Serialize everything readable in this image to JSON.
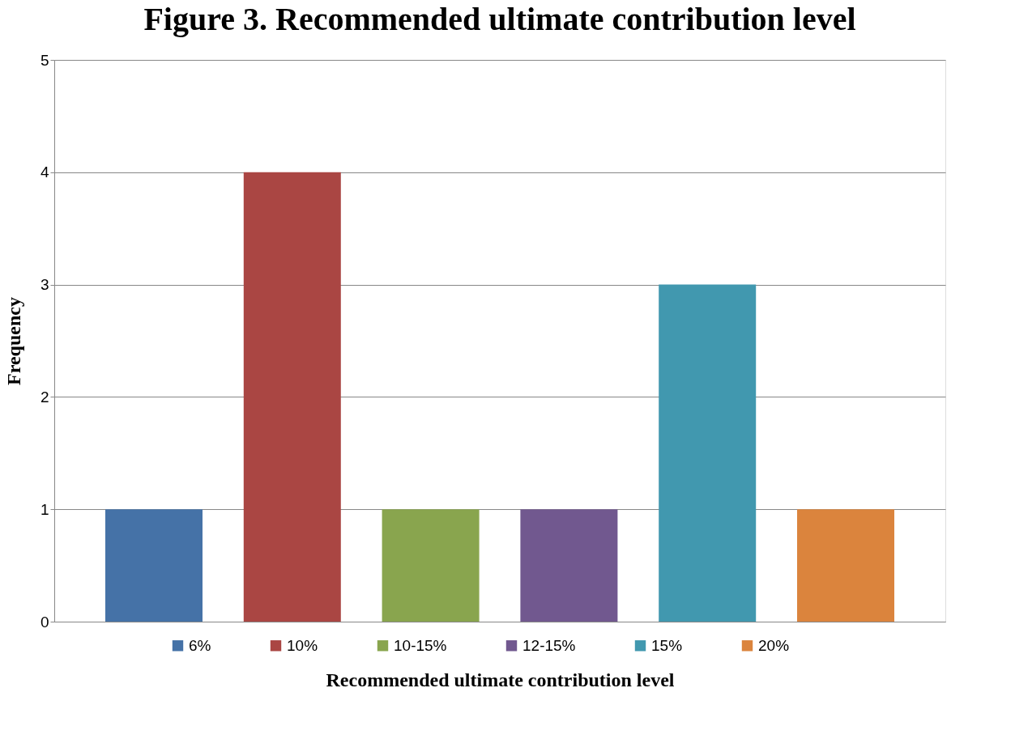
{
  "chart_data": {
    "type": "bar",
    "title": "Figure 3. Recommended ultimate contribution level",
    "xlabel": "Recommended ultimate contribution level",
    "ylabel": "Frequency",
    "categories": [
      null
    ],
    "series": [
      {
        "name": "6%",
        "color": "#4572a7",
        "values": [
          1
        ]
      },
      {
        "name": "10%",
        "color": "#aa4643",
        "values": [
          4
        ]
      },
      {
        "name": "10-15%",
        "color": "#89a54e",
        "values": [
          1
        ]
      },
      {
        "name": "12-15%",
        "color": "#71588f",
        "values": [
          1
        ]
      },
      {
        "name": "15%",
        "color": "#4198af",
        "values": [
          3
        ]
      },
      {
        "name": "20%",
        "color": "#db843d",
        "values": [
          1
        ]
      }
    ],
    "ylim": [
      0,
      5
    ],
    "yticks": [
      0,
      1,
      2,
      3,
      4,
      5
    ],
    "grid": "y",
    "legend": "bottom",
    "tick_labels": "y"
  }
}
